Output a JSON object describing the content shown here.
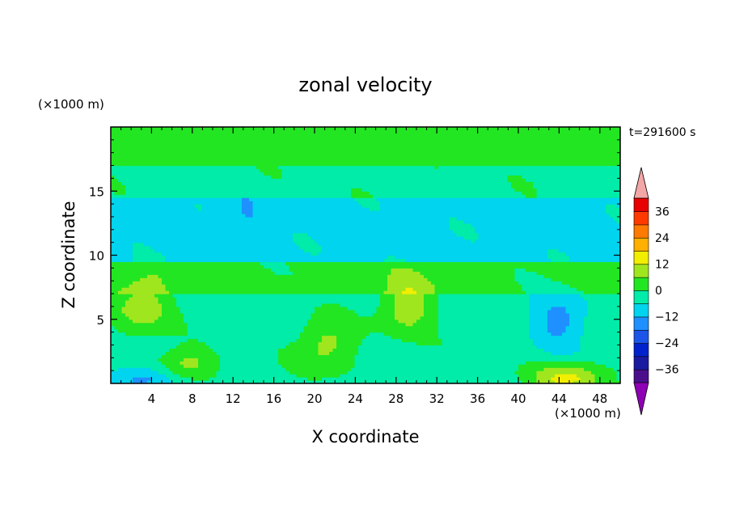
{
  "chart_data": {
    "type": "heatmap",
    "title": "zonal velocity",
    "xlabel": "X coordinate",
    "ylabel": "Z coordinate",
    "x_unit": "(×1000 m)",
    "y_unit": "(×1000 m)",
    "time_label": "t=291600 s",
    "xlim": [
      0,
      50
    ],
    "ylim": [
      0,
      20
    ],
    "x_ticks": [
      4,
      8,
      12,
      16,
      20,
      24,
      28,
      32,
      36,
      40,
      44,
      48
    ],
    "y_ticks": [
      5,
      10,
      15
    ],
    "grid": false,
    "colorbar": {
      "levels": [
        -42,
        -36,
        -30,
        -24,
        -18,
        -12,
        -6,
        0,
        6,
        12,
        18,
        24,
        30,
        36,
        42
      ],
      "tick_values": [
        -36,
        -24,
        -12,
        0,
        12,
        24,
        36
      ],
      "tick_labels": [
        "−36",
        "−24",
        "−12",
        "0",
        "12",
        "24",
        "36"
      ],
      "colors": [
        "#4b0f8c",
        "#1a1aa0",
        "#0022cc",
        "#1c55e8",
        "#1e90ff",
        "#00d4ee",
        "#00eca8",
        "#22e622",
        "#a0e61e",
        "#f2ee00",
        "#ffb000",
        "#ff7a00",
        "#ff3a00",
        "#e80000"
      ],
      "under_color": "#8e00b4",
      "over_color": "#f2a6a6",
      "placement": "right"
    },
    "field_type": "contour-filled",
    "bands": [
      {
        "z_range": [
          17,
          20
        ],
        "value": 3,
        "description": "weak positive"
      },
      {
        "z_range": [
          14.5,
          17
        ],
        "value": -2,
        "description": "weak negative with positive patches"
      },
      {
        "z_range": [
          9.5,
          14.5
        ],
        "value": -8,
        "description": "negative"
      },
      {
        "z_range": [
          7,
          9.5
        ],
        "value": 2,
        "description": "weak positive"
      },
      {
        "z_range": [
          0,
          7
        ],
        "value": -3,
        "description": "mixed, positive maxima near surface"
      }
    ],
    "features": [
      {
        "x": 3,
        "z": 6,
        "value": 10
      },
      {
        "x": 21,
        "z": 3,
        "value": 9
      },
      {
        "x": 29,
        "z": 6,
        "value": 10
      },
      {
        "x": 45,
        "z": 0.5,
        "value": 14
      },
      {
        "x": 44,
        "z": 5,
        "value": -14
      },
      {
        "x": 3,
        "z": 0.4,
        "value": -16
      },
      {
        "x": 13,
        "z": 12.5,
        "value": -12
      },
      {
        "x": 7,
        "z": 1.5,
        "value": 9
      }
    ]
  }
}
